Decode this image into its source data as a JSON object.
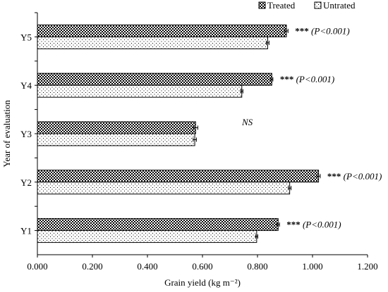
{
  "chart_data": {
    "type": "bar",
    "orientation": "horizontal",
    "categories": [
      "Y1",
      "Y2",
      "Y3",
      "Y4",
      "Y5"
    ],
    "series": [
      {
        "name": "Treated",
        "pattern": "dense-dots",
        "values": [
          0.875,
          1.022,
          0.575,
          0.852,
          0.905
        ],
        "errors": [
          0.005,
          0.006,
          0.008,
          0.004,
          0.006
        ]
      },
      {
        "name": "Untrated",
        "pattern": "sparse-dots",
        "values": [
          0.797,
          0.917,
          0.572,
          0.743,
          0.837
        ],
        "errors": [
          0.004,
          0.005,
          0.006,
          0.004,
          0.005
        ]
      }
    ],
    "annotations": [
      {
        "category": "Y1",
        "stars": "***",
        "p_open": "(",
        "p_text": "P<0.001",
        "p_close": ")"
      },
      {
        "category": "Y2",
        "stars": "***",
        "p_open": "(",
        "p_text": "P<0.001",
        "p_close": ")"
      },
      {
        "category": "Y3",
        "stars": "",
        "p_open": "",
        "p_text": "NS",
        "p_close": ""
      },
      {
        "category": "Y4",
        "stars": "***",
        "p_open": "(",
        "p_text": "P<0.001",
        "p_close": ")"
      },
      {
        "category": "Y5",
        "stars": "***",
        "p_open": "(",
        "p_text": "P<0.001",
        "p_close": ")"
      }
    ],
    "xlabel": "Grain yield (kg m⁻²)",
    "ylabel": "Year of evaluation",
    "xlim": [
      0,
      1.2
    ],
    "xticks": [
      "0.000",
      "0.200",
      "0.400",
      "0.600",
      "0.800",
      "1.000",
      "1.200"
    ],
    "grid": false,
    "legend_position": "top-right",
    "colors": {
      "bar_fill": "#ffffff",
      "pattern": "#000000",
      "axis": "#000000"
    }
  }
}
